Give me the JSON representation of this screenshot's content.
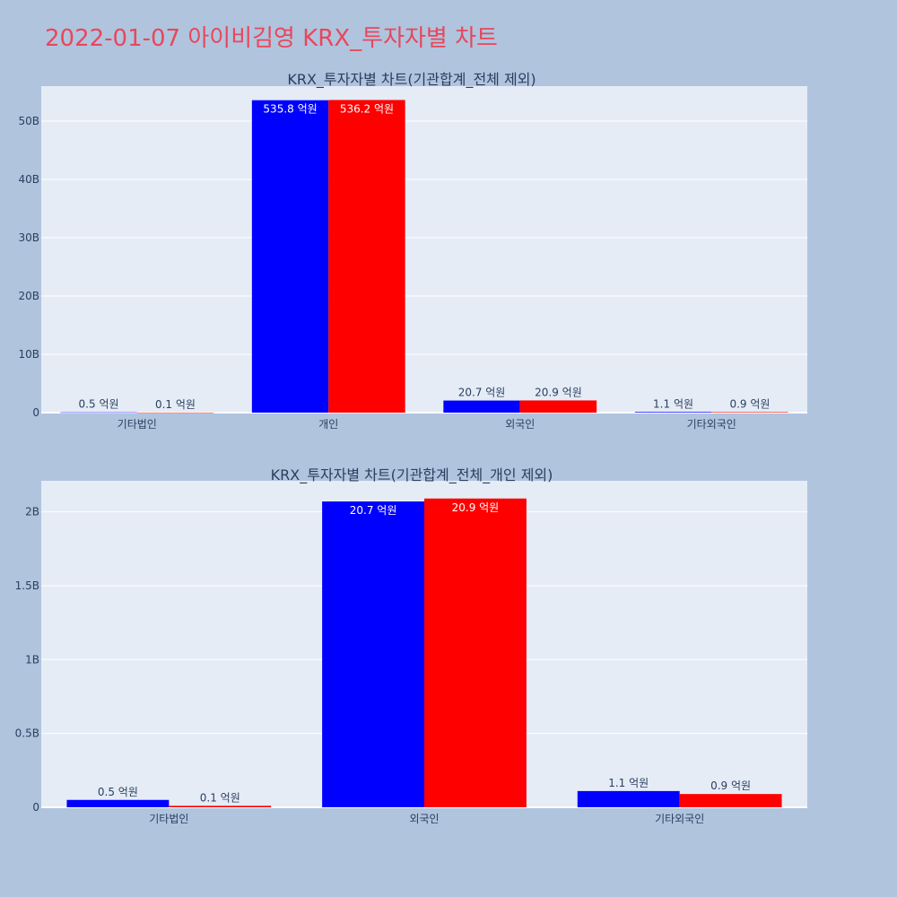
{
  "page": {
    "title": "2022-01-07 아이비김영 KRX_투자자별 차트"
  },
  "colors": {
    "background": "#b0c4de",
    "plot_bg": "#e5ecf6",
    "title": "#e8475b",
    "series_a": "#0000ff",
    "series_b": "#ff0000"
  },
  "chart_data": [
    {
      "type": "bar",
      "title": "KRX_투자자별 차트(기관합계_전체 제외)",
      "categories": [
        "기타법인",
        "개인",
        "외국인",
        "기타외국인"
      ],
      "series": [
        {
          "values": [
            50000000,
            53580000000,
            2070000000,
            110000000
          ],
          "labels": [
            "0.5 억원",
            "535.8 억원",
            "20.7 억원",
            "1.1 억원"
          ],
          "color": "#0000ff"
        },
        {
          "values": [
            10000000,
            53620000000,
            2090000000,
            90000000
          ],
          "labels": [
            "0.1 억원",
            "536.2 억원",
            "20.9 억원",
            "0.9 억원"
          ],
          "color": "#ff0000"
        }
      ],
      "ylim": [
        0,
        56000000000
      ],
      "yticks": [
        0,
        10000000000,
        20000000000,
        30000000000,
        40000000000,
        50000000000
      ],
      "ytick_labels": [
        "0",
        "10B",
        "20B",
        "30B",
        "40B",
        "50B"
      ],
      "grid": true,
      "xlabel": "",
      "ylabel": ""
    },
    {
      "type": "bar",
      "title": "KRX_투자자별 차트(기관합계_전체_개인 제외)",
      "categories": [
        "기타법인",
        "외국인",
        "기타외국인"
      ],
      "series": [
        {
          "values": [
            50000000,
            2070000000,
            110000000
          ],
          "labels": [
            "0.5 억원",
            "20.7 억원",
            "1.1 억원"
          ],
          "color": "#0000ff"
        },
        {
          "values": [
            10000000,
            2090000000,
            90000000
          ],
          "labels": [
            "0.1 억원",
            "20.9 억원",
            "0.9 억원"
          ],
          "color": "#ff0000"
        }
      ],
      "ylim": [
        0,
        2210000000
      ],
      "yticks": [
        0,
        500000000,
        1000000000,
        1500000000,
        2000000000
      ],
      "ytick_labels": [
        "0",
        "0.5B",
        "1B",
        "1.5B",
        "2B"
      ],
      "grid": true,
      "xlabel": "",
      "ylabel": ""
    }
  ]
}
